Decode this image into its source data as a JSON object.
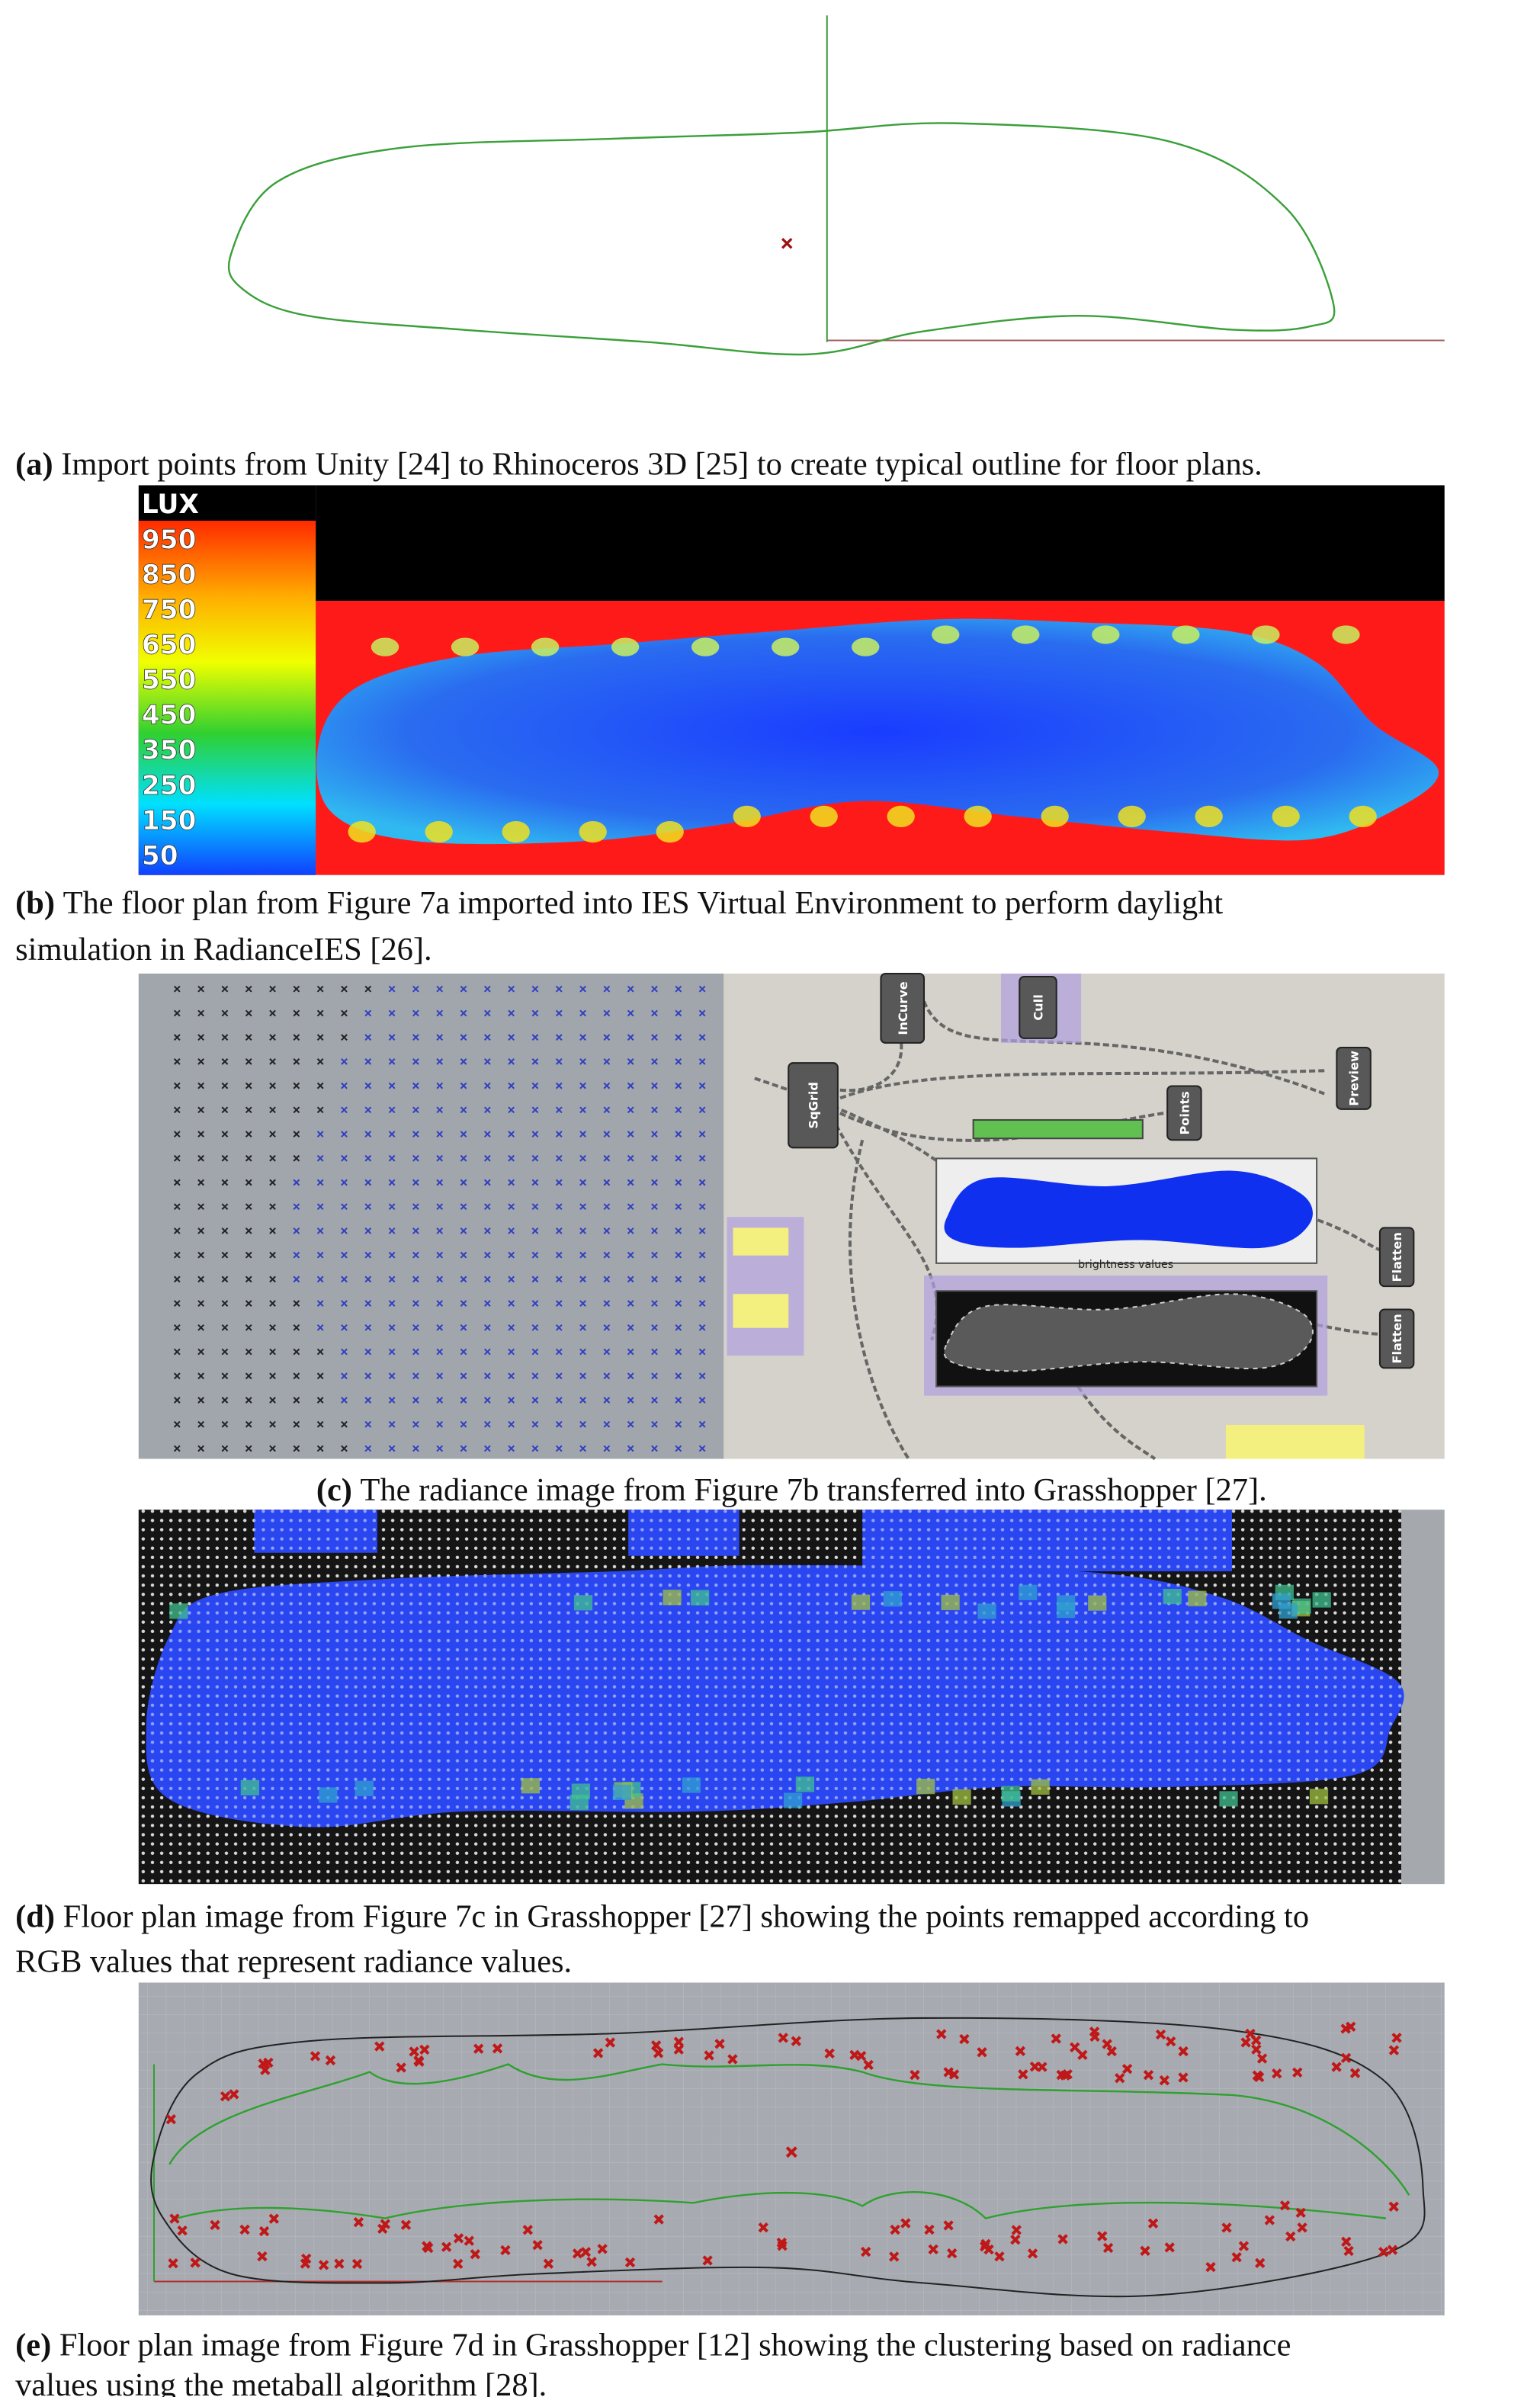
{
  "panels": [
    {
      "label": "(a)",
      "caption": [
        "Import points from Unity [24] to Rhinoceros 3D [25] to create typical outline for floor plans."
      ]
    },
    {
      "label": "(b)",
      "caption": [
        "The floor plan from Figure 7a imported into IES Virtual Environment to perform daylight",
        "simulation in RadianceIES [26]."
      ],
      "legend_title": "LUX",
      "legend_labels": [
        "950",
        "850",
        "750",
        "650",
        "550",
        "450",
        "350",
        "250",
        "150",
        "50"
      ]
    },
    {
      "label": "(c)",
      "caption": [
        "The radiance image from Figure 7b transferred into Grasshopper [27]."
      ],
      "components": [
        "SqGrid",
        "InCurve",
        "Cull",
        "Preview",
        "Points",
        "Flatten",
        "Flatten"
      ],
      "panel_title": "brightness values"
    },
    {
      "label": "(d)",
      "caption": [
        "Floor plan image from Figure 7c in Grasshopper [27] showing the points remapped according to",
        "RGB values that represent radiance values."
      ]
    },
    {
      "label": "(e)",
      "caption": [
        "Floor plan image from Figure 7d in Grasshopper [12] showing the clustering based on radiance",
        "values using the metaball algorithm [28]."
      ]
    }
  ]
}
